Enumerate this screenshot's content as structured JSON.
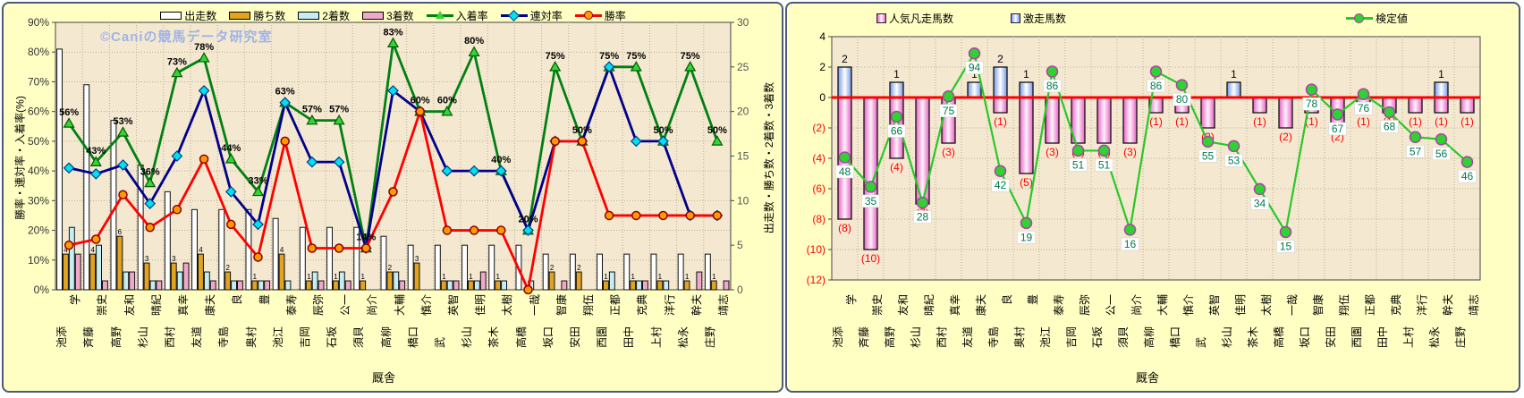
{
  "panels": {
    "left": {
      "watermark": "©Caniの競馬データ研究室",
      "y_left_title": "勝率・連対率・入着率(%)",
      "y_right_title": "出走数・勝ち数・2着数・3着数",
      "x_title": "厩舎",
      "legend": [
        {
          "label": "出走数",
          "type": "bar",
          "color": "#FFFFFF"
        },
        {
          "label": "勝ち数",
          "type": "bar",
          "color": "#E2A321"
        },
        {
          "label": "2着数",
          "type": "bar",
          "color": "#C5EEF2"
        },
        {
          "label": "3着数",
          "type": "bar",
          "color": "#F0A8CA"
        },
        {
          "label": "入着率",
          "type": "line",
          "color": "#008013",
          "marker": "triangle",
          "marker_color": "#35D435"
        },
        {
          "label": "連対率",
          "type": "line",
          "color": "#00008B",
          "marker": "diamond",
          "marker_color": "#00E0EE"
        },
        {
          "label": "勝率",
          "type": "line",
          "color": "#FF0000",
          "marker": "circle",
          "marker_color": "#FF9900"
        }
      ]
    },
    "right": {
      "x_title": "厩舎",
      "legend": [
        {
          "label": "人気凡走馬数",
          "type": "bar",
          "color": "#E85FC4"
        },
        {
          "label": "激走馬数",
          "type": "bar",
          "color": "#7799E8"
        },
        {
          "label": "検定値",
          "type": "line",
          "color": "#28C828",
          "marker": "circle",
          "marker_color": "#2FD32F"
        }
      ]
    }
  },
  "stables": [
    {
      "family": "池添",
      "given": "学"
    },
    {
      "family": "斉藤",
      "given": "崇史"
    },
    {
      "family": "高野",
      "given": "友和"
    },
    {
      "family": "杉山",
      "given": "晴紀"
    },
    {
      "family": "西村",
      "given": "真幸"
    },
    {
      "family": "友道",
      "given": "康夫"
    },
    {
      "family": "寺島",
      "given": "良"
    },
    {
      "family": "奥村",
      "given": "豊"
    },
    {
      "family": "池江",
      "given": "泰寿"
    },
    {
      "family": "吉岡",
      "given": "辰弥"
    },
    {
      "family": "石坂",
      "given": "公一"
    },
    {
      "family": "須貝",
      "given": "尚介"
    },
    {
      "family": "高柳",
      "given": "大輔"
    },
    {
      "family": "橋口",
      "given": "慎介"
    },
    {
      "family": "武",
      "given": "英智"
    },
    {
      "family": "杉山",
      "given": "佳明"
    },
    {
      "family": "茶木",
      "given": "太樹"
    },
    {
      "family": "高橋",
      "given": "一哉"
    },
    {
      "family": "坂口",
      "given": "智康"
    },
    {
      "family": "安田",
      "given": "翔伍"
    },
    {
      "family": "西園",
      "given": "正都"
    },
    {
      "family": "田中",
      "given": "克典"
    },
    {
      "family": "上村",
      "given": "洋行"
    },
    {
      "family": "松永",
      "given": "幹夫"
    },
    {
      "family": "庄野",
      "given": "靖志"
    }
  ],
  "chart_data": [
    {
      "type": "bar+line",
      "title": "",
      "xlabel": "厩舎",
      "categories": [
        "池添 学",
        "斉藤 崇史",
        "高野 友和",
        "杉山 晴紀",
        "西村 真幸",
        "友道 康夫",
        "寺島 良",
        "奥村 豊",
        "池江 泰寿",
        "吉岡 辰弥",
        "石坂 公一",
        "須貝 尚介",
        "高柳 大輔",
        "橋口 慎介",
        "武 英智",
        "杉山 佳明",
        "茶木 太樹",
        "高橋 一哉",
        "坂口 智康",
        "安田 翔伍",
        "西園 正都",
        "田中 克典",
        "上村 洋行",
        "松永 幹夫",
        "庄野 靖志"
      ],
      "y_left": {
        "label": "勝率・連対率・入着率(%)",
        "min": 0,
        "max": 90,
        "step": 10,
        "suffix": "%"
      },
      "y_right": {
        "label": "出走数・勝ち数・2着数・3着数",
        "min": 0,
        "max": 30,
        "step": 5
      },
      "grid": true,
      "legend_position": "top",
      "series": [
        {
          "key": "starts",
          "name": "出走数",
          "type": "bar",
          "axis": "right",
          "color": "#FFFFFF",
          "values": [
            27,
            23,
            19,
            14,
            11,
            9,
            9,
            9,
            8,
            7,
            7,
            7,
            6,
            5,
            5,
            5,
            5,
            5,
            4,
            4,
            4,
            4,
            4,
            4,
            4
          ]
        },
        {
          "key": "wins",
          "name": "勝ち数",
          "type": "bar",
          "axis": "right",
          "color": "#E2A321",
          "show_labels": true,
          "values": [
            4,
            4,
            6,
            3,
            3,
            4,
            2,
            1,
            4,
            1,
            1,
            1,
            2,
            3,
            1,
            1,
            1,
            0,
            2,
            2,
            1,
            1,
            1,
            1,
            1
          ]
        },
        {
          "key": "seconds",
          "name": "2着数",
          "type": "bar",
          "axis": "right",
          "color": "#C5EEF2",
          "values": [
            7,
            5,
            2,
            1,
            2,
            2,
            1,
            1,
            1,
            2,
            2,
            0,
            2,
            0,
            1,
            1,
            1,
            1,
            0,
            0,
            2,
            1,
            1,
            0,
            0
          ]
        },
        {
          "key": "thirds",
          "name": "3着数",
          "type": "bar",
          "axis": "right",
          "color": "#F0A8CA",
          "values": [
            4,
            1,
            2,
            1,
            3,
            1,
            1,
            1,
            0,
            1,
            1,
            0,
            1,
            0,
            1,
            2,
            0,
            0,
            1,
            0,
            0,
            1,
            0,
            2,
            1
          ]
        },
        {
          "key": "place-rate",
          "name": "入着率",
          "type": "line",
          "axis": "left",
          "color": "#008013",
          "marker": "triangle",
          "marker_color": "#35D435",
          "show_labels": true,
          "label_suffix": "%",
          "values": [
            56,
            43,
            53,
            36,
            73,
            78,
            44,
            33,
            63,
            57,
            57,
            14,
            83,
            60,
            60,
            80,
            40,
            20,
            75,
            50,
            75,
            75,
            50,
            75,
            50
          ]
        },
        {
          "key": "quinella-rate",
          "name": "連対率",
          "type": "line",
          "axis": "left",
          "color": "#00008B",
          "marker": "diamond",
          "marker_color": "#00E0EE",
          "values": [
            41,
            39,
            42,
            29,
            45,
            67,
            33,
            22,
            63,
            43,
            43,
            14,
            67,
            60,
            40,
            40,
            40,
            20,
            50,
            50,
            75,
            50,
            50,
            25,
            25
          ]
        },
        {
          "key": "win-rate",
          "name": "勝率",
          "type": "line",
          "axis": "left",
          "color": "#FF0000",
          "marker": "circle",
          "marker_color": "#FF9900",
          "values": [
            15,
            17,
            32,
            21,
            27,
            44,
            22,
            11,
            50,
            14,
            14,
            14,
            33,
            60,
            20,
            20,
            20,
            0,
            50,
            50,
            25,
            25,
            25,
            25,
            25
          ]
        }
      ]
    },
    {
      "type": "bar+line",
      "title": "",
      "xlabel": "厩舎",
      "categories": [
        "池添 学",
        "斉藤 崇史",
        "高野 友和",
        "杉山 晴紀",
        "西村 真幸",
        "友道 康夫",
        "寺島 良",
        "奥村 豊",
        "池江 泰寿",
        "吉岡 辰弥",
        "石坂 公一",
        "須貝 尚介",
        "高柳 大輔",
        "橋口 慎介",
        "武 英智",
        "杉山 佳明",
        "茶木 太樹",
        "高橋 一哉",
        "坂口 智康",
        "安田 翔伍",
        "西園 正都",
        "田中 克典",
        "上村 洋行",
        "松永 幹夫",
        "庄野 靖志"
      ],
      "y_left": {
        "min": -12,
        "max": 4,
        "step": 2,
        "negative_style": "parentheses-red"
      },
      "grid": true,
      "zero_line_color": "#FF0000",
      "series": [
        {
          "key": "flop-count",
          "name": "人気凡走馬数",
          "type": "bar",
          "direction": "negative",
          "color": "#E85FC4",
          "show_labels": true,
          "values": [
            8,
            10,
            4,
            7,
            3,
            0,
            1,
            5,
            3,
            3,
            3,
            3,
            1,
            1,
            2,
            0,
            1,
            2,
            1,
            2,
            1,
            1,
            1,
            1,
            1
          ]
        },
        {
          "key": "surge-count",
          "name": "激走馬数",
          "type": "bar",
          "direction": "positive",
          "color": "#7799E8",
          "show_labels": true,
          "values": [
            2,
            0,
            1,
            0,
            0,
            1,
            2,
            1,
            0,
            0,
            0,
            0,
            0,
            0,
            0,
            1,
            0,
            0,
            0,
            0,
            0,
            0,
            0,
            1,
            0
          ]
        },
        {
          "key": "test-value",
          "name": "検定値",
          "type": "line",
          "scale": "score-0-100",
          "color": "#28C828",
          "marker": "circle",
          "marker_color": "#2FD32F",
          "show_labels": true,
          "values": [
            48,
            35,
            66,
            28,
            75,
            94,
            42,
            19,
            86,
            51,
            51,
            16,
            86,
            80,
            55,
            53,
            34,
            15,
            78,
            67,
            76,
            68,
            57,
            56,
            46
          ]
        }
      ]
    }
  ]
}
